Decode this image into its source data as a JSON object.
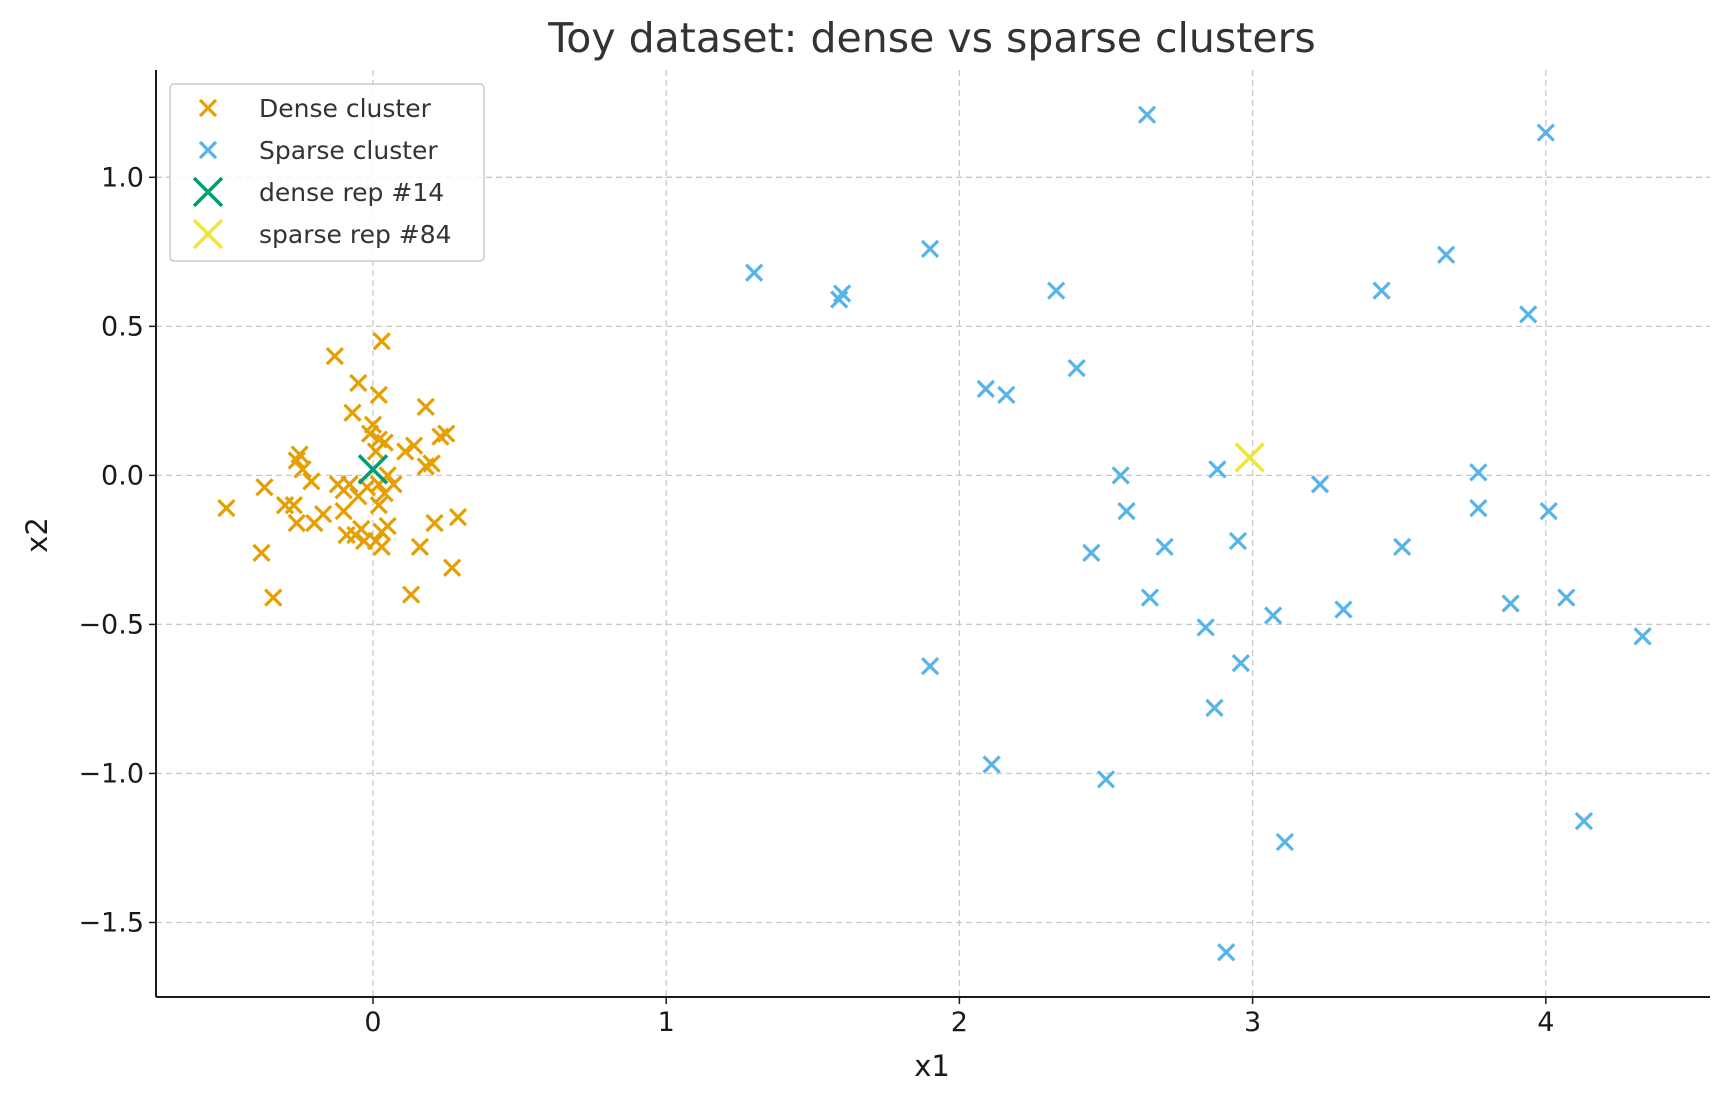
{
  "chart_data": {
    "type": "scatter",
    "title": "Toy dataset: dense vs sparse clusters",
    "xlabel": "x1",
    "ylabel": "x2",
    "xlim": [
      -0.74,
      4.56
    ],
    "ylim": [
      -1.75,
      1.36
    ],
    "xticks": [
      0,
      1,
      2,
      3,
      4
    ],
    "xtick_labels": [
      "0",
      "1",
      "2",
      "3",
      "4"
    ],
    "yticks": [
      1.0,
      0.5,
      0.0,
      -0.5,
      -1.0,
      -1.5
    ],
    "ytick_labels": [
      "1.0",
      "0.5",
      "0.0",
      "−0.5",
      "−1.0",
      "−1.5"
    ],
    "grid": true,
    "legend_position": "top-left",
    "series": [
      {
        "name": "Dense cluster",
        "marker": "x",
        "color": "#E69F00",
        "points": [
          [
            -0.5,
            -0.11
          ],
          [
            -0.37,
            -0.04
          ],
          [
            -0.38,
            -0.26
          ],
          [
            -0.34,
            -0.41
          ],
          [
            -0.3,
            -0.1
          ],
          [
            -0.27,
            -0.1
          ],
          [
            -0.26,
            -0.16
          ],
          [
            -0.26,
            0.05
          ],
          [
            -0.25,
            0.07
          ],
          [
            -0.24,
            0.02
          ],
          [
            -0.21,
            -0.02
          ],
          [
            -0.2,
            -0.16
          ],
          [
            -0.17,
            -0.13
          ],
          [
            -0.13,
            0.4
          ],
          [
            -0.12,
            -0.03
          ],
          [
            -0.1,
            -0.05
          ],
          [
            -0.1,
            -0.12
          ],
          [
            -0.09,
            -0.2
          ],
          [
            -0.08,
            -0.03
          ],
          [
            -0.07,
            0.21
          ],
          [
            -0.06,
            -0.2
          ],
          [
            -0.05,
            -0.07
          ],
          [
            -0.05,
            0.31
          ],
          [
            -0.04,
            -0.18
          ],
          [
            -0.03,
            -0.22
          ],
          [
            -0.02,
            -0.04
          ],
          [
            -0.01,
            0.14
          ],
          [
            0.0,
            0.17
          ],
          [
            0.01,
            -0.22
          ],
          [
            0.01,
            0.08
          ],
          [
            0.02,
            0.12
          ],
          [
            0.02,
            -0.1
          ],
          [
            0.02,
            -0.03
          ],
          [
            0.02,
            0.27
          ],
          [
            0.03,
            -0.24
          ],
          [
            0.03,
            -0.19
          ],
          [
            0.03,
            0.45
          ],
          [
            0.04,
            0.11
          ],
          [
            0.04,
            -0.06
          ],
          [
            0.05,
            0.0
          ],
          [
            0.05,
            -0.17
          ],
          [
            0.07,
            -0.03
          ],
          [
            0.11,
            0.08
          ],
          [
            0.13,
            -0.4
          ],
          [
            0.14,
            0.1
          ],
          [
            0.16,
            -0.24
          ],
          [
            0.18,
            0.03
          ],
          [
            0.18,
            0.23
          ],
          [
            0.2,
            0.04
          ],
          [
            0.21,
            -0.16
          ],
          [
            0.23,
            0.13
          ],
          [
            0.25,
            0.14
          ],
          [
            0.27,
            -0.31
          ],
          [
            0.29,
            -0.14
          ]
        ]
      },
      {
        "name": "Sparse cluster",
        "marker": "x",
        "color": "#56B4E9",
        "points": [
          [
            1.3,
            0.68
          ],
          [
            1.59,
            0.59
          ],
          [
            1.6,
            0.61
          ],
          [
            1.9,
            0.76
          ],
          [
            1.9,
            -0.64
          ],
          [
            2.09,
            0.29
          ],
          [
            2.11,
            -0.97
          ],
          [
            2.16,
            0.27
          ],
          [
            2.33,
            0.62
          ],
          [
            2.4,
            0.36
          ],
          [
            2.45,
            -0.26
          ],
          [
            2.5,
            -1.02
          ],
          [
            2.55,
            0.0
          ],
          [
            2.57,
            -0.12
          ],
          [
            2.64,
            1.21
          ],
          [
            2.65,
            -0.41
          ],
          [
            2.7,
            -0.24
          ],
          [
            2.84,
            -0.51
          ],
          [
            2.87,
            -0.78
          ],
          [
            2.88,
            0.02
          ],
          [
            2.91,
            -1.6
          ],
          [
            2.95,
            -0.22
          ],
          [
            2.96,
            -0.63
          ],
          [
            3.07,
            -0.47
          ],
          [
            3.11,
            -1.23
          ],
          [
            3.23,
            -0.03
          ],
          [
            3.31,
            -0.45
          ],
          [
            3.44,
            0.62
          ],
          [
            3.51,
            -0.24
          ],
          [
            3.66,
            0.74
          ],
          [
            3.77,
            0.01
          ],
          [
            3.77,
            -0.11
          ],
          [
            3.88,
            -0.43
          ],
          [
            3.94,
            0.54
          ],
          [
            4.0,
            1.15
          ],
          [
            4.01,
            -0.12
          ],
          [
            4.07,
            -0.41
          ],
          [
            4.13,
            -1.16
          ],
          [
            4.33,
            -0.54
          ]
        ]
      },
      {
        "name": "dense rep #14",
        "marker": "X",
        "color": "#009E73",
        "points": [
          [
            0.0,
            0.02
          ]
        ]
      },
      {
        "name": "sparse rep #84",
        "marker": "X",
        "color": "#F0E442",
        "points": [
          [
            2.99,
            0.06
          ]
        ]
      }
    ]
  }
}
